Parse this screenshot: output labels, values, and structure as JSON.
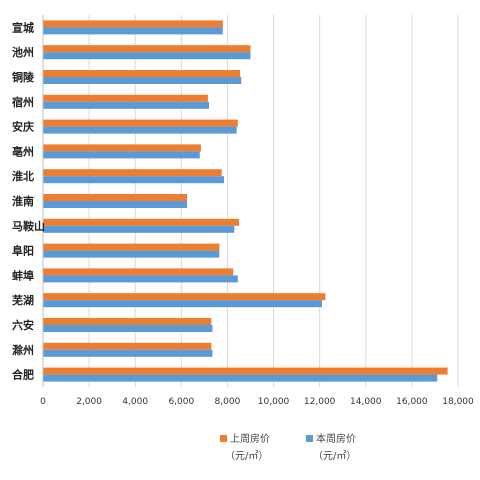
{
  "chart_data": {
    "type": "bar",
    "orientation": "horizontal",
    "categories": [
      "宣城",
      "池州",
      "铜陵",
      "宿州",
      "安庆",
      "亳州",
      "淮北",
      "淮南",
      "马鞍山",
      "阜阳",
      "蚌埠",
      "芜湖",
      "六安",
      "滁州",
      "合肥"
    ],
    "series": [
      {
        "name": "上周房价",
        "unit": "（元/㎡）",
        "color": "#ED7D31",
        "values": [
          7800,
          9000,
          8550,
          7150,
          8450,
          6850,
          7750,
          6250,
          8500,
          7650,
          8250,
          12250,
          7300,
          7300,
          17550
        ]
      },
      {
        "name": "本周房价",
        "unit": "（元/㎡）",
        "color": "#5B9BD5",
        "values": [
          7800,
          9000,
          8600,
          7200,
          8400,
          6800,
          7850,
          6250,
          8300,
          7650,
          8450,
          12100,
          7350,
          7350,
          17100
        ]
      }
    ],
    "xlim": [
      0,
      18000
    ],
    "x_ticks": [
      "0",
      "2,000",
      "4,000",
      "6,000",
      "8,000",
      "10,000",
      "12,000",
      "14,000",
      "16,000",
      "18,000"
    ],
    "x_tick_values": [
      0,
      2000,
      4000,
      6000,
      8000,
      10000,
      12000,
      14000,
      16000,
      18000
    ],
    "grid": true,
    "legend_position": "bottom"
  }
}
